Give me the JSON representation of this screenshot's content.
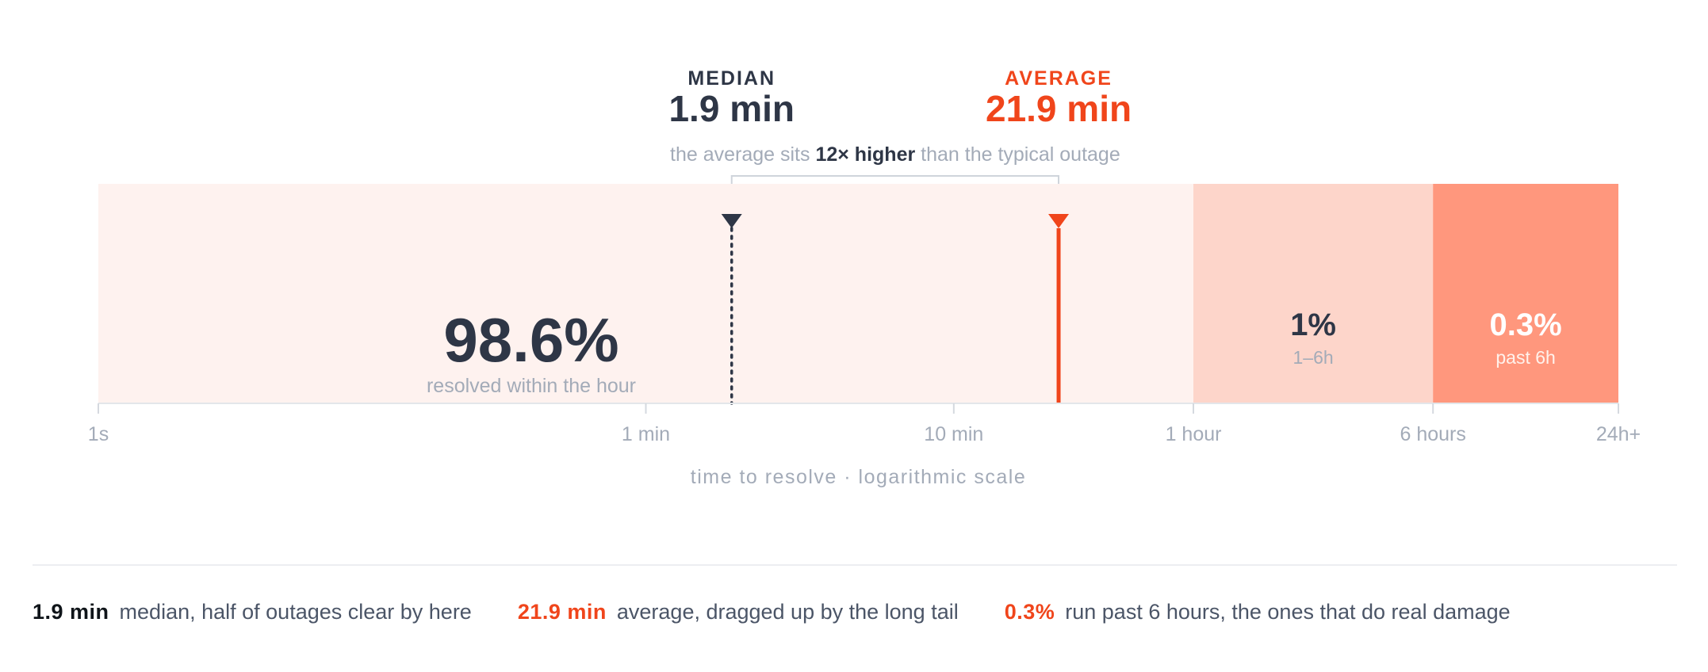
{
  "colors": {
    "ink": "#2e3646",
    "accent": "#f0451b",
    "muted": "#a3abb8",
    "band_within_hour": "#fef2ef",
    "band_1_6h": "#fdd5ca",
    "band_past_6h": "#ff977d"
  },
  "header": {
    "median": {
      "label": "MEDIAN",
      "value": "1.9 min"
    },
    "average": {
      "label": "AVERAGE",
      "value": "21.9 min"
    },
    "note": {
      "prefix": "the average sits ",
      "emphasis": "12× higher",
      "suffix": " than the typical outage"
    }
  },
  "chart_data": {
    "type": "bar",
    "scale": "log",
    "xlabel": "time to resolve · logarithmic scale",
    "xlim_minutes": [
      0.01667,
      1440
    ],
    "ticks": [
      {
        "label": "1s",
        "minutes": 0.01667
      },
      {
        "label": "1 min",
        "minutes": 1
      },
      {
        "label": "10 min",
        "minutes": 10
      },
      {
        "label": "1 hour",
        "minutes": 60
      },
      {
        "label": "6 hours",
        "minutes": 360
      },
      {
        "label": "24h+",
        "minutes": 1440
      }
    ],
    "segments": [
      {
        "start_minutes": 0.01667,
        "end_minutes": 60,
        "percent": "98.6%",
        "label": "resolved within the hour",
        "color": "#fef2ef"
      },
      {
        "start_minutes": 60,
        "end_minutes": 360,
        "percent": "1%",
        "label": "1–6h",
        "color": "#fdd5ca"
      },
      {
        "start_minutes": 360,
        "end_minutes": 1440,
        "percent": "0.3%",
        "label": "past 6h",
        "color": "#ff977d"
      }
    ],
    "markers": [
      {
        "name": "median",
        "minutes": 1.9,
        "style": "dotted",
        "color": "#2e3646"
      },
      {
        "name": "average",
        "minutes": 21.9,
        "style": "solid",
        "color": "#f0451b"
      }
    ]
  },
  "legend": [
    {
      "value": "1.9 min",
      "text": "median, half of outages clear by here",
      "color": "#0f1419"
    },
    {
      "value": "21.9 min",
      "text": "average, dragged up by the long tail",
      "color": "#f0451b"
    },
    {
      "value": "0.3%",
      "text": "run past 6 hours, the ones that do real damage",
      "color": "#f0451b"
    }
  ]
}
